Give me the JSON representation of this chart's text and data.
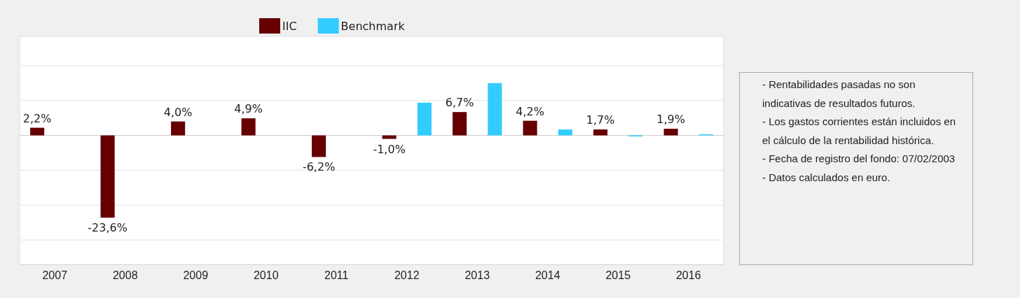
{
  "chart_data": {
    "type": "bar",
    "categories": [
      "2007",
      "2008",
      "2009",
      "2010",
      "2011",
      "2012",
      "2013",
      "2014",
      "2015",
      "2016"
    ],
    "series": [
      {
        "name": "IIC",
        "color": "#660000",
        "values": [
          2.2,
          -23.6,
          4.0,
          4.9,
          -6.2,
          -1.0,
          6.7,
          4.2,
          1.7,
          1.9
        ],
        "value_labels": [
          "2,2%",
          "-23,6%",
          "4,0%",
          "4,9%",
          "-6,2%",
          "-1,0%",
          "6,7%",
          "4,2%",
          "1,7%",
          "1,9%"
        ]
      },
      {
        "name": "Benchmark",
        "color": "#33ccff",
        "values": [
          null,
          null,
          null,
          null,
          null,
          9.4,
          15.0,
          1.7,
          -0.3,
          0.3
        ]
      }
    ],
    "ylim": [
      -37,
      28.4
    ],
    "yticks": [
      {
        "value": -30,
        "label": null
      },
      {
        "value": -20,
        "label": null
      },
      {
        "value": -10,
        "label": null
      },
      {
        "value": 0,
        "label": null
      },
      {
        "value": 10,
        "label": null
      },
      {
        "value": 20,
        "label": null
      }
    ],
    "tick_labels": "x",
    "grid": "y",
    "legend": "top",
    "annotations": [
      "- Rentabilidades pasadas no son indicativas de resultados futuros.",
      "- Los gastos corrientes están incluidos en el cálculo de la rentabilidad histórica.",
      "- Fecha de registro del fondo: 07/02/2003",
      "- Datos calculados en euro."
    ]
  }
}
